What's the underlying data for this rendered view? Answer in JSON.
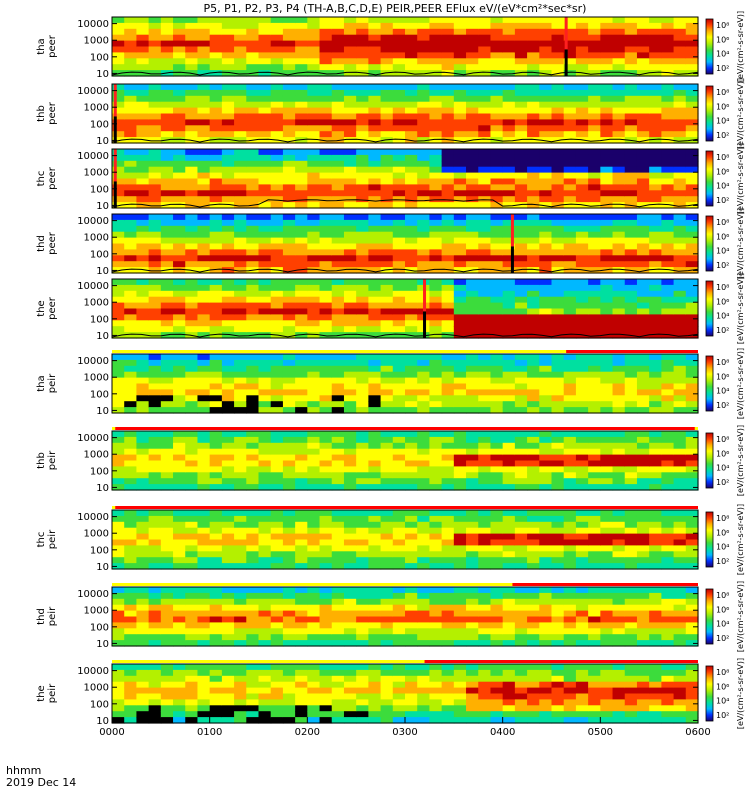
{
  "title": "P5, P1, P2, P3, P4 (TH-A,B,C,D,E) PEIR,PEER EFlux eV/(eV*cm²*sec*sr)",
  "footer": {
    "time_label": "hhmm",
    "date_label": "2019 Dec 14"
  },
  "x_axis": {
    "ticks": [
      "0000",
      "0100",
      "0200",
      "0300",
      "0400",
      "0500",
      "0600"
    ],
    "range_hhmm": [
      "0000",
      "0600"
    ]
  },
  "y_axis": {
    "scale": "log",
    "range_eV": [
      7,
      25000
    ],
    "tick_labels": [
      "10000",
      "1000",
      "100",
      "10"
    ]
  },
  "colorbar": {
    "scale": "log",
    "tick_labels_electron": [
      "10⁸",
      "10⁶",
      "10⁴",
      "10²"
    ],
    "tick_labels_ion": [
      "10⁸",
      "10⁶",
      "10⁴",
      "10²"
    ],
    "units_label": "[eV/(cm²-s-sr-eV)]",
    "palette": [
      "#1a006b",
      "#0030ff",
      "#00b8ff",
      "#00e0a0",
      "#3cdc3c",
      "#b4f000",
      "#ffff00",
      "#ffb000",
      "#ff4000",
      "#c00000"
    ]
  },
  "chart_data": [
    {
      "type": "heatmap",
      "ylabel": "tha peer",
      "probe": "A",
      "species": "electron",
      "has_potential_trace": true,
      "gap_hhmm": "0439"
    },
    {
      "type": "heatmap",
      "ylabel": "thb peer",
      "probe": "B",
      "species": "electron",
      "has_potential_trace": true,
      "gap_hhmm": "0002"
    },
    {
      "type": "heatmap",
      "ylabel": "thc peer",
      "probe": "C",
      "species": "electron",
      "has_potential_trace": true,
      "gap_hhmm": "0002"
    },
    {
      "type": "heatmap",
      "ylabel": "thd peer",
      "probe": "D",
      "species": "electron",
      "has_potential_trace": true,
      "gap_hhmm": "0406"
    },
    {
      "type": "heatmap",
      "ylabel": "the peer",
      "probe": "E",
      "species": "electron",
      "has_potential_trace": true,
      "gap_hhmm": "0272"
    },
    {
      "type": "heatmap",
      "ylabel": "tha peir",
      "probe": "A",
      "species": "ion",
      "mode_bar_from_hhmm": "0439",
      "mode_bar_to_hhmm": "0600"
    },
    {
      "type": "heatmap",
      "ylabel": "thb peir",
      "probe": "B",
      "species": "ion",
      "mode_bar_from_hhmm": "0002",
      "mode_bar_to_hhmm": "0558"
    },
    {
      "type": "heatmap",
      "ylabel": "thc peir",
      "probe": "C",
      "species": "ion",
      "mode_bar_from_hhmm": "0002",
      "mode_bar_to_hhmm": "0600"
    },
    {
      "type": "heatmap",
      "ylabel": "thd peir",
      "probe": "D",
      "species": "ion",
      "mode_bar_from_hhmm": "0406",
      "mode_bar_to_hhmm": "0600"
    },
    {
      "type": "heatmap",
      "ylabel": "the peir",
      "probe": "E",
      "species": "ion",
      "mode_bar_from_hhmm": "0272",
      "mode_bar_to_hhmm": "0600"
    }
  ]
}
